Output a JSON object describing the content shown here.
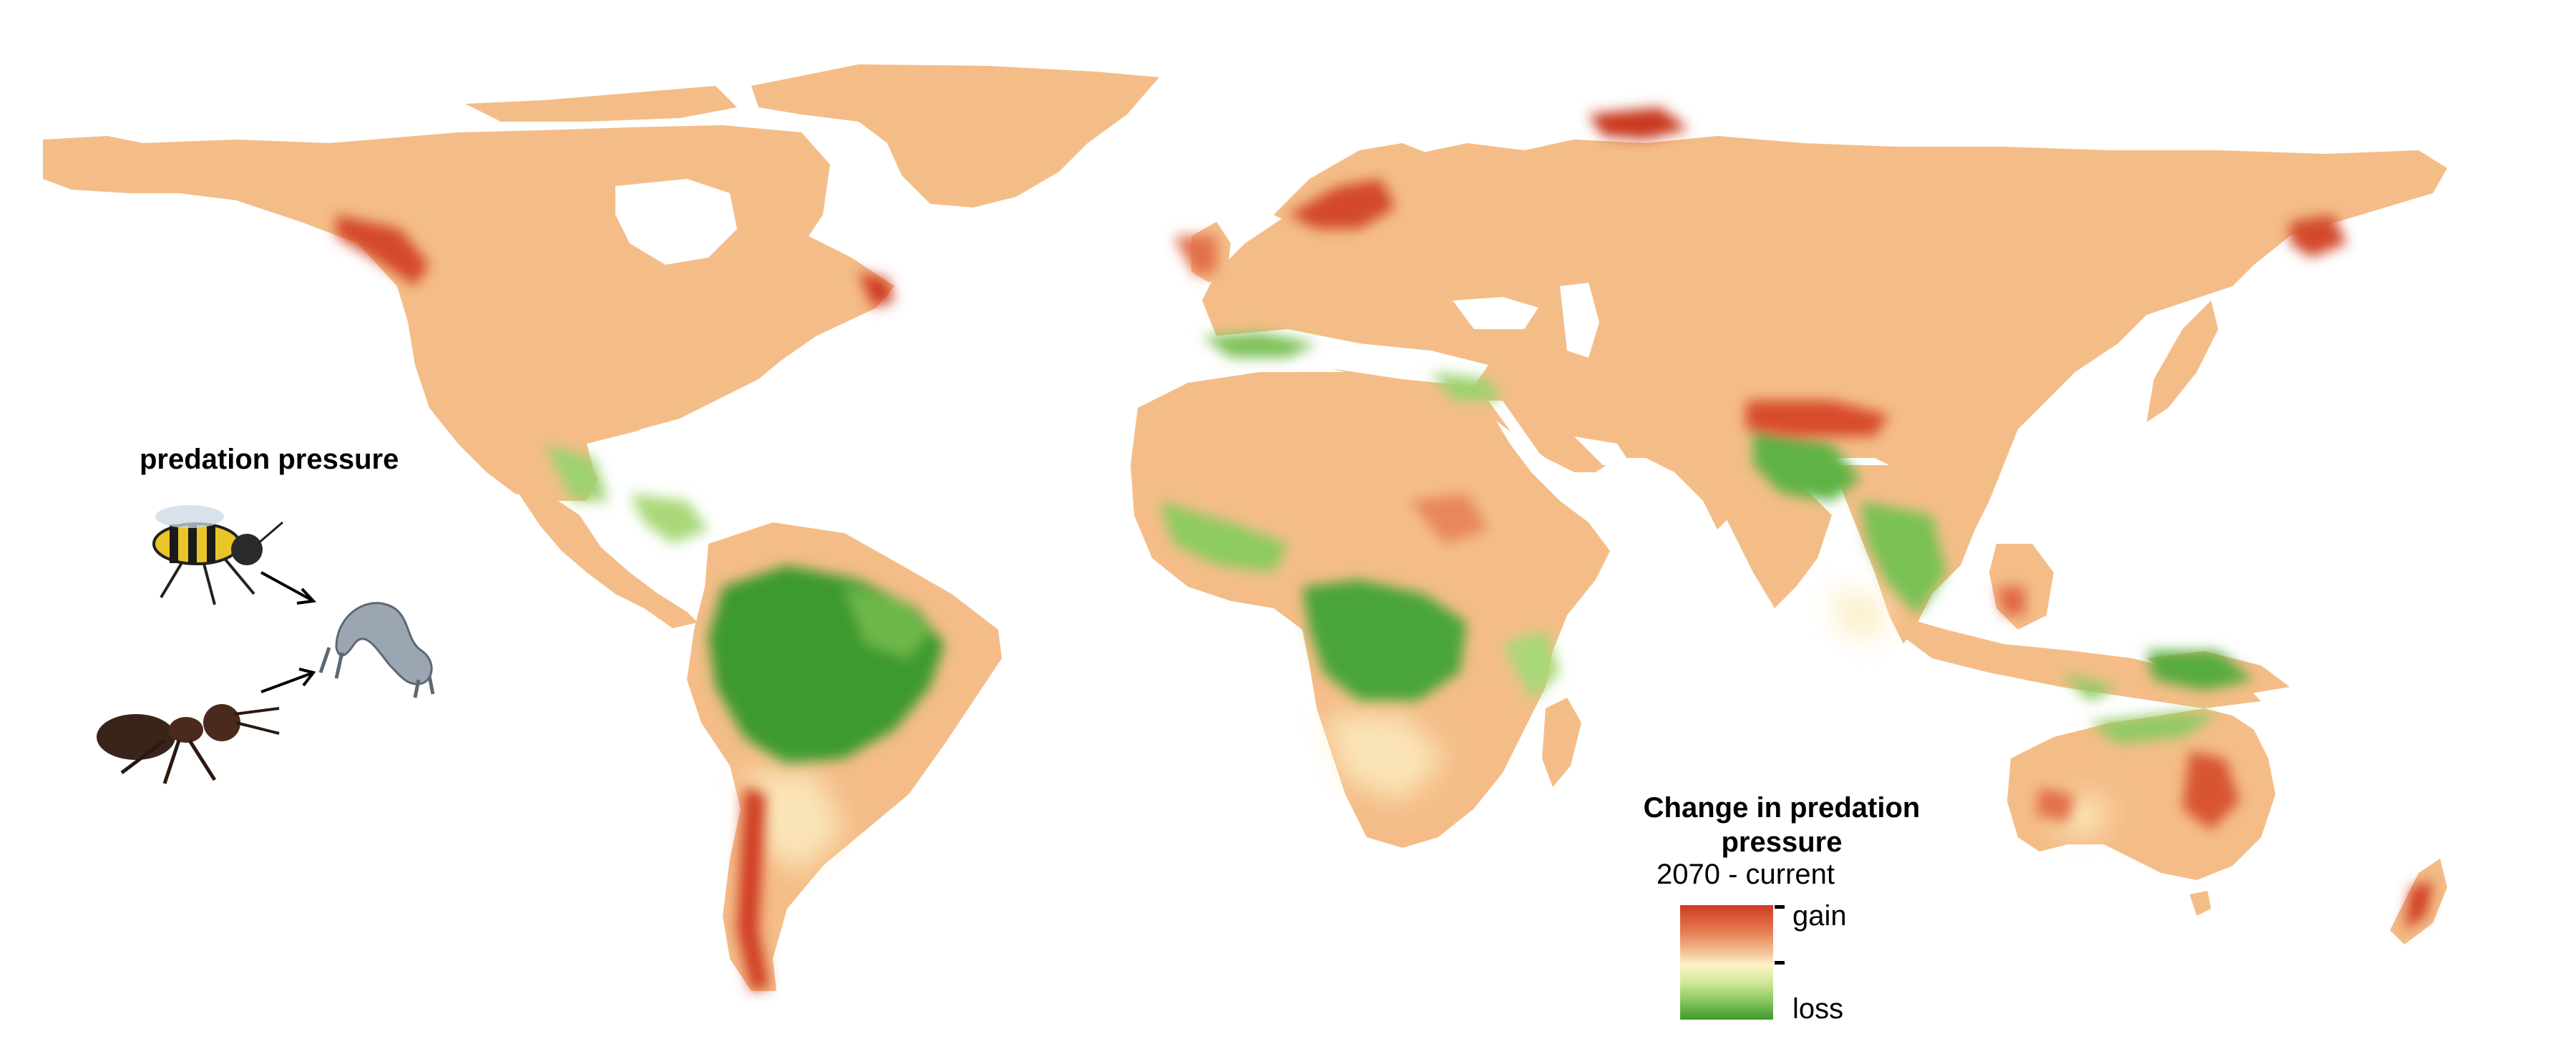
{
  "inset": {
    "title": "predation pressure",
    "predators": [
      "wasp",
      "ant"
    ],
    "prey": "caterpillar"
  },
  "legend": {
    "title": "Change in predation pressure",
    "subtitle": "2070 - current",
    "high_label": "gain",
    "low_label": "loss",
    "colors": {
      "gain": "#cf3a22",
      "moderate_gain": "#e5784f",
      "baseline": "#f4bd88",
      "neutral": "#fdf2c6",
      "mild_loss": "#a9d878",
      "loss": "#3d9a2c"
    }
  },
  "map": {
    "projection": "equirectangular world",
    "ocean_color": "#ffffff",
    "land_base_color": "#f4bd88"
  }
}
